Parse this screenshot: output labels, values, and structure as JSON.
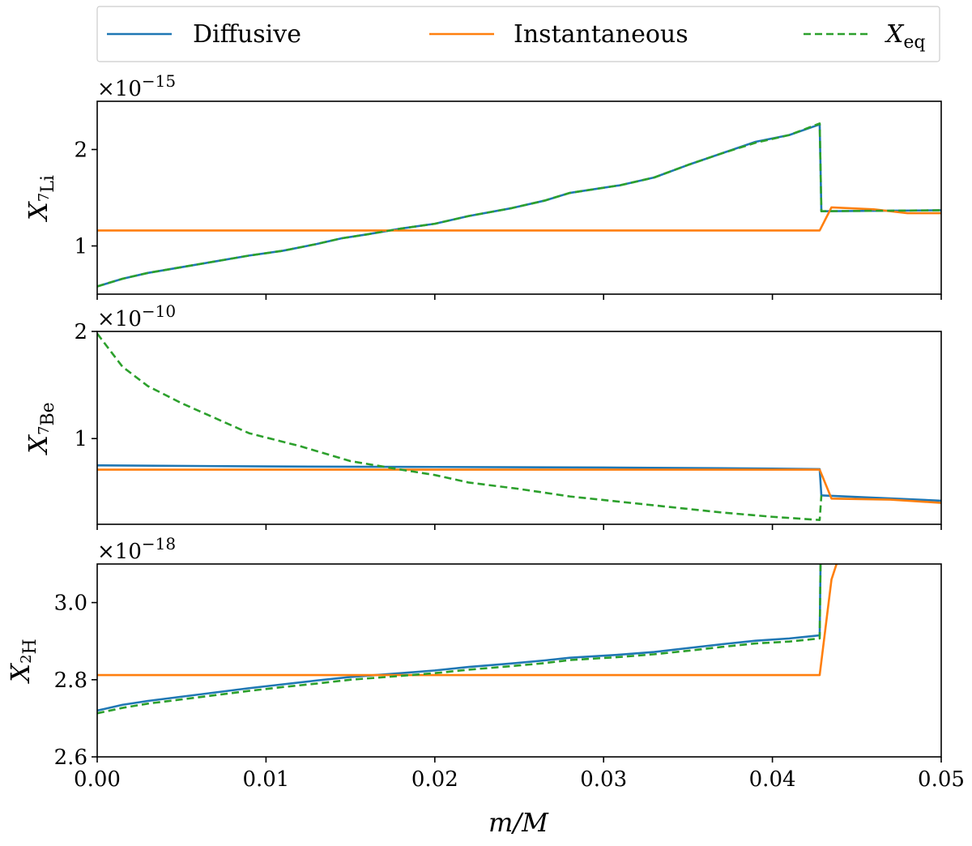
{
  "chart_data": {
    "type": "line",
    "legend": {
      "placement": "top",
      "entries": [
        {
          "label": "Diffusive",
          "color": "#1f77b4",
          "dash": "solid"
        },
        {
          "label": "Instantaneous",
          "color": "#ff7f0e",
          "dash": "solid"
        },
        {
          "label_main": "X",
          "label_sub": "eq",
          "color": "#2ca02c",
          "dash": "dashed"
        }
      ]
    },
    "xlabel": {
      "main": "m/M"
    },
    "xlim": [
      0,
      0.05
    ],
    "xticks": [
      0.0,
      0.01,
      0.02,
      0.03,
      0.04,
      0.05
    ],
    "xtick_labels": [
      "0.00",
      "0.01",
      "0.02",
      "0.03",
      "0.04",
      "0.05"
    ],
    "panels": [
      {
        "id": "li",
        "ylabel_main": "X",
        "ylabel_sup": "7",
        "ylabel_sub": "Li",
        "offset_base": "×10",
        "offset_exp": "−15",
        "ylim": [
          0.5,
          2.5
        ],
        "yticks": [
          1,
          2
        ],
        "ytick_labels": [
          "1",
          "2"
        ],
        "series": [
          {
            "name": "Diffusive",
            "color": "#1f77b4",
            "dash": "solid",
            "points": [
              [
                0,
                0.58
              ],
              [
                0.0015,
                0.66
              ],
              [
                0.003,
                0.72
              ],
              [
                0.005,
                0.78
              ],
              [
                0.007,
                0.84
              ],
              [
                0.009,
                0.9
              ],
              [
                0.011,
                0.95
              ],
              [
                0.013,
                1.02
              ],
              [
                0.0145,
                1.08
              ],
              [
                0.016,
                1.12
              ],
              [
                0.018,
                1.18
              ],
              [
                0.02,
                1.23
              ],
              [
                0.022,
                1.31
              ],
              [
                0.0245,
                1.39
              ],
              [
                0.0265,
                1.47
              ],
              [
                0.028,
                1.55
              ],
              [
                0.031,
                1.63
              ],
              [
                0.033,
                1.71
              ],
              [
                0.035,
                1.84
              ],
              [
                0.037,
                1.96
              ],
              [
                0.039,
                2.08
              ],
              [
                0.041,
                2.15
              ],
              [
                0.0428,
                2.26
              ],
              [
                0.0429,
                1.36
              ],
              [
                0.05,
                1.37
              ]
            ]
          },
          {
            "name": "Instantaneous",
            "color": "#ff7f0e",
            "dash": "solid",
            "points": [
              [
                0,
                1.16
              ],
              [
                0.0428,
                1.16
              ],
              [
                0.0435,
                1.4
              ],
              [
                0.046,
                1.38
              ],
              [
                0.048,
                1.34
              ],
              [
                0.05,
                1.34
              ]
            ]
          },
          {
            "name": "X_eq",
            "color": "#2ca02c",
            "dash": "dashed",
            "points": [
              [
                0,
                0.58
              ],
              [
                0.0015,
                0.66
              ],
              [
                0.003,
                0.72
              ],
              [
                0.005,
                0.78
              ],
              [
                0.007,
                0.84
              ],
              [
                0.009,
                0.9
              ],
              [
                0.011,
                0.95
              ],
              [
                0.013,
                1.02
              ],
              [
                0.0145,
                1.08
              ],
              [
                0.016,
                1.12
              ],
              [
                0.018,
                1.18
              ],
              [
                0.02,
                1.23
              ],
              [
                0.022,
                1.31
              ],
              [
                0.0245,
                1.39
              ],
              [
                0.0265,
                1.47
              ],
              [
                0.028,
                1.55
              ],
              [
                0.031,
                1.63
              ],
              [
                0.033,
                1.71
              ],
              [
                0.035,
                1.84
              ],
              [
                0.037,
                1.96
              ],
              [
                0.039,
                2.07
              ],
              [
                0.041,
                2.15
              ],
              [
                0.0428,
                2.27
              ],
              [
                0.0429,
                1.36
              ],
              [
                0.05,
                1.37
              ]
            ]
          }
        ]
      },
      {
        "id": "be",
        "ylabel_main": "X",
        "ylabel_sup": "7",
        "ylabel_sub": "Be",
        "offset_base": "×10",
        "offset_exp": "−10",
        "ylim": [
          0.2,
          2.0
        ],
        "yticks": [
          1,
          2
        ],
        "ytick_labels": [
          "1",
          "2"
        ],
        "series": [
          {
            "name": "Diffusive",
            "color": "#1f77b4",
            "dash": "solid",
            "points": [
              [
                0,
                0.75
              ],
              [
                0.01,
                0.74
              ],
              [
                0.02,
                0.735
              ],
              [
                0.03,
                0.73
              ],
              [
                0.04,
                0.72
              ],
              [
                0.0428,
                0.715
              ],
              [
                0.0429,
                0.47
              ],
              [
                0.05,
                0.42
              ]
            ]
          },
          {
            "name": "Instantaneous",
            "color": "#ff7f0e",
            "dash": "solid",
            "points": [
              [
                0,
                0.71
              ],
              [
                0.0428,
                0.71
              ],
              [
                0.0435,
                0.44
              ],
              [
                0.047,
                0.43
              ],
              [
                0.05,
                0.4
              ]
            ]
          },
          {
            "name": "X_eq",
            "color": "#2ca02c",
            "dash": "dashed",
            "points": [
              [
                0,
                1.98
              ],
              [
                0.0015,
                1.67
              ],
              [
                0.003,
                1.49
              ],
              [
                0.005,
                1.33
              ],
              [
                0.007,
                1.19
              ],
              [
                0.009,
                1.05
              ],
              [
                0.012,
                0.93
              ],
              [
                0.015,
                0.79
              ],
              [
                0.018,
                0.71
              ],
              [
                0.02,
                0.66
              ],
              [
                0.022,
                0.59
              ],
              [
                0.025,
                0.53
              ],
              [
                0.028,
                0.46
              ],
              [
                0.031,
                0.41
              ],
              [
                0.034,
                0.36
              ],
              [
                0.037,
                0.31
              ],
              [
                0.04,
                0.27
              ],
              [
                0.0428,
                0.24
              ],
              [
                0.0429,
                0.47
              ]
            ]
          }
        ]
      },
      {
        "id": "h",
        "ylabel_main": "X",
        "ylabel_sup": "2",
        "ylabel_sub": "H",
        "offset_base": "×10",
        "offset_exp": "−18",
        "ylim": [
          2.6,
          3.1
        ],
        "yticks": [
          2.6,
          2.8,
          3.0
        ],
        "ytick_labels": [
          "2.6",
          "2.8",
          "3.0"
        ],
        "series": [
          {
            "name": "Diffusive",
            "color": "#1f77b4",
            "dash": "solid",
            "points": [
              [
                0,
                2.72
              ],
              [
                0.0015,
                2.735
              ],
              [
                0.003,
                2.745
              ],
              [
                0.005,
                2.756
              ],
              [
                0.007,
                2.767
              ],
              [
                0.009,
                2.778
              ],
              [
                0.011,
                2.788
              ],
              [
                0.013,
                2.798
              ],
              [
                0.015,
                2.807
              ],
              [
                0.018,
                2.817
              ],
              [
                0.02,
                2.824
              ],
              [
                0.022,
                2.833
              ],
              [
                0.0245,
                2.842
              ],
              [
                0.0265,
                2.85
              ],
              [
                0.028,
                2.857
              ],
              [
                0.031,
                2.865
              ],
              [
                0.033,
                2.872
              ],
              [
                0.035,
                2.882
              ],
              [
                0.037,
                2.892
              ],
              [
                0.039,
                2.901
              ],
              [
                0.041,
                2.907
              ],
              [
                0.0428,
                2.915
              ],
              [
                0.04285,
                3.1
              ]
            ]
          },
          {
            "name": "Instantaneous",
            "color": "#ff7f0e",
            "dash": "solid",
            "points": [
              [
                0,
                2.812
              ],
              [
                0.0428,
                2.812
              ],
              [
                0.0435,
                3.06
              ],
              [
                0.0438,
                3.1
              ]
            ]
          },
          {
            "name": "X_eq",
            "color": "#2ca02c",
            "dash": "dashed",
            "points": [
              [
                0,
                2.713
              ],
              [
                0.0015,
                2.727
              ],
              [
                0.003,
                2.738
              ],
              [
                0.005,
                2.749
              ],
              [
                0.007,
                2.76
              ],
              [
                0.009,
                2.771
              ],
              [
                0.011,
                2.781
              ],
              [
                0.013,
                2.79
              ],
              [
                0.015,
                2.8
              ],
              [
                0.018,
                2.81
              ],
              [
                0.02,
                2.817
              ],
              [
                0.022,
                2.826
              ],
              [
                0.0245,
                2.835
              ],
              [
                0.0265,
                2.843
              ],
              [
                0.028,
                2.851
              ],
              [
                0.031,
                2.859
              ],
              [
                0.033,
                2.866
              ],
              [
                0.035,
                2.875
              ],
              [
                0.037,
                2.885
              ],
              [
                0.039,
                2.894
              ],
              [
                0.041,
                2.899
              ],
              [
                0.0428,
                2.907
              ],
              [
                0.04285,
                3.1
              ]
            ]
          }
        ]
      }
    ]
  }
}
